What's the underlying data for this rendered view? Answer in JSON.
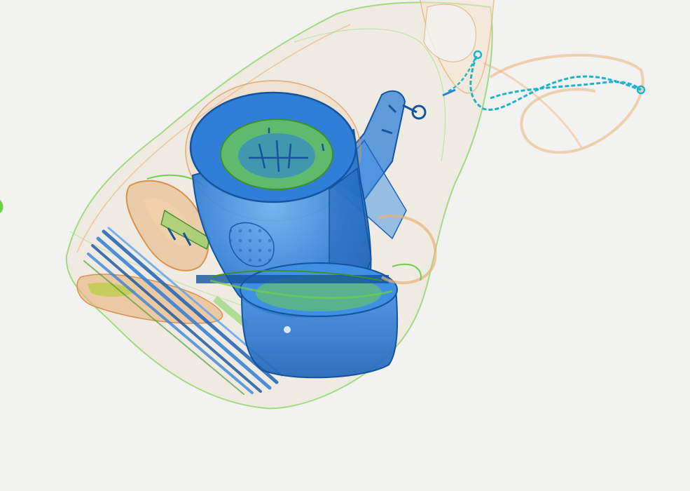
{
  "image": {
    "kind": "x-ray baggage scan",
    "background_color": "#f2f3f1"
  },
  "palette": {
    "organic": "#e8b27a",
    "organic_dark": "#d9924e",
    "mixed": "#6fcf4a",
    "mixed_light": "#a7df87",
    "metal": "#2f7fd8",
    "metal_dark": "#14549e",
    "metal_light": "#5aa3ee",
    "edge_cyan": "#1fb3c9"
  },
  "objects": [
    "bag-outline",
    "chain",
    "key-ring",
    "cylinder-container",
    "angled-handle",
    "round-pot",
    "utensil-bundle",
    "left-sandal",
    "plug"
  ]
}
